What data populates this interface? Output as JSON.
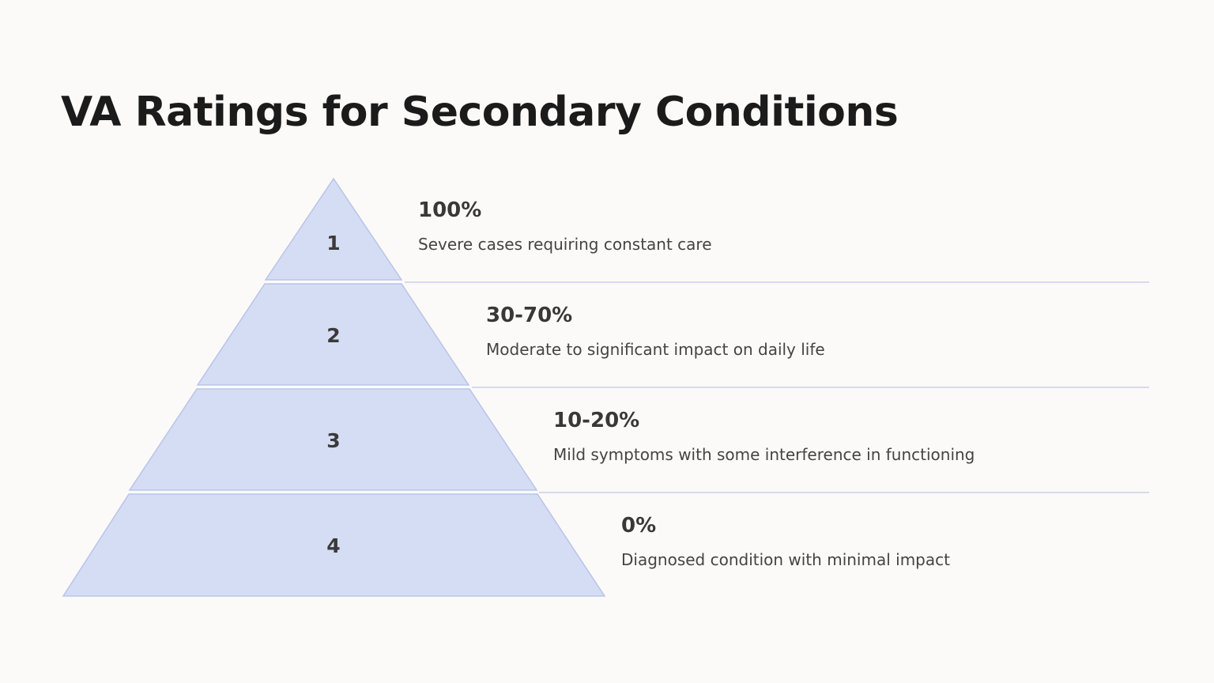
{
  "title": "VA Ratings for Secondary Conditions",
  "colors": {
    "tier_fill": "#d4ddf4",
    "tier_stroke": "#b9c4e8",
    "divider": "#c9cfe6",
    "background": "#fcfaf9"
  },
  "tiers": [
    {
      "number": "1",
      "label": "100%",
      "description": "Severe cases requiring constant care"
    },
    {
      "number": "2",
      "label": "30-70%",
      "description": "Moderate to significant impact on daily life"
    },
    {
      "number": "3",
      "label": "10-20%",
      "description": "Mild symptoms with some interference in functioning"
    },
    {
      "number": "4",
      "label": "0%",
      "description": "Diagnosed condition with minimal impact"
    }
  ]
}
